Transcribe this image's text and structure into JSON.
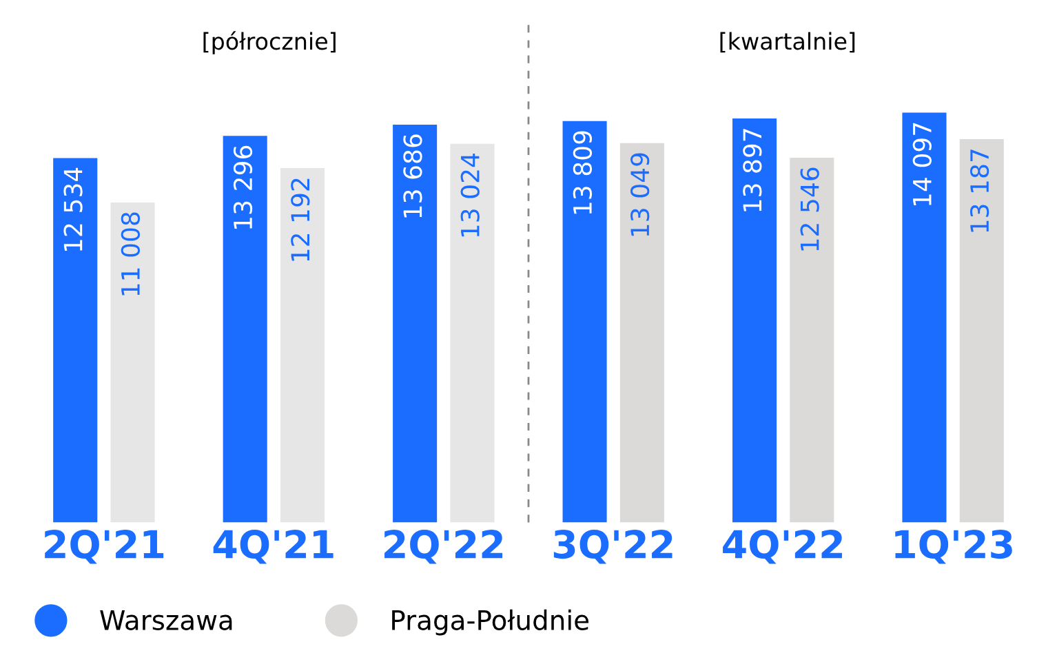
{
  "chart_data": {
    "type": "bar",
    "categories": [
      "2Q'21",
      "4Q'21",
      "2Q'22",
      "3Q'22",
      "4Q'22",
      "1Q'23"
    ],
    "series": [
      {
        "name": "Warszawa",
        "color": "#1a6dff",
        "values": [
          12534,
          13296,
          13686,
          13809,
          13897,
          14097
        ],
        "value_labels": [
          "12 534",
          "13 296",
          "13 686",
          "13 809",
          "13 897",
          "14 097"
        ]
      },
      {
        "name": "Praga-Południe",
        "color": "#dcdad8",
        "colors": [
          "#e6e6e6",
          "#e6e6e6",
          "#e6e6e6",
          "#dcdad8",
          "#dcdad8",
          "#dcdad8"
        ],
        "values": [
          11008,
          12192,
          13024,
          13049,
          12546,
          13187
        ],
        "value_labels": [
          "11 008",
          "12 192",
          "13 024",
          "13 049",
          "12 546",
          "13 187"
        ]
      }
    ],
    "tick_labels": "x",
    "annotations": [
      "[półrocznie]",
      "[kwartalnie]"
    ],
    "grid": false,
    "legend": "bottom left"
  }
}
